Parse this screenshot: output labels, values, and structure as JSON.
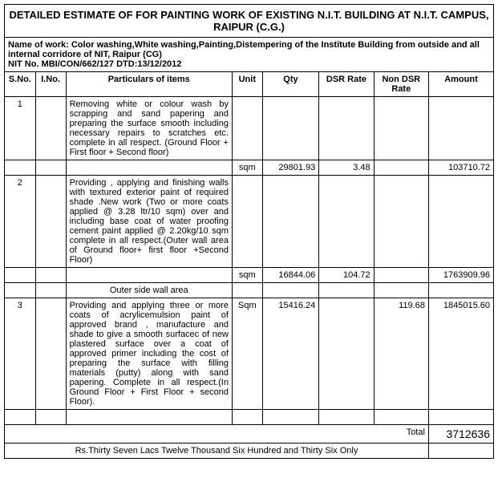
{
  "title": "DETAILED ESTIMATE OF FOR PAINTING   WORK   OF EXISTING N.I.T. BUILDING AT N.I.T. CAMPUS, RAIPUR (C.G.)",
  "work_name": "Name of work: Color washing,White washing,Painting,Distempering of the Institute Building from outside and all internal corridore of NIT, Raipur (CG)",
  "nit_no": "NIT No. MBI/CON/662/127 DTD:13/12/2012",
  "headers": {
    "sno": "S.No.",
    "ino": "I.No.",
    "particulars": "Particulars of items",
    "unit": "Unit",
    "qty": "Qty",
    "dsr": "DSR Rate",
    "ndsr": "Non DSR Rate",
    "amount": "Amount"
  },
  "rows": [
    {
      "sno": "1",
      "ino": "",
      "desc": "Removing white or colour wash by scrapping and sand papering and preparing the surface smooth including necessary repairs to scratches etc. complete in all respect.  (Ground Floor + First floor + Second floor)",
      "unit": "sqm",
      "qty": "29801.93",
      "dsr": "3.48",
      "ndsr": "",
      "amount": "103710.72",
      "sub": ""
    },
    {
      "sno": "2",
      "ino": "",
      "desc": "Providing , applying and finishing walls with textured exterior paint of required shade .New work (Two or more coats applied @ 3.28 ltr/10 sqm) over and including base coat of water proofing cement paint applied @ 2.20kg/10 sqm complete in all respect.(Outer wall area of Ground floor+ first floor +Second Floor)",
      "unit": "sqm",
      "qty": "16844.06",
      "dsr": "104.72",
      "ndsr": "",
      "amount": "1763909.96",
      "sub": "Outer side wall area"
    },
    {
      "sno": "3",
      "ino": "",
      "desc": " Providing and applying three or more coats of acrylicemulsion paint of approved brand , manufacture and shade to give a smooth surfacec of new plastered surface  over a coat of approved primer including the cost of preparing the surface with filling materials (putty) along with sand papering. Complete in all respect.(In Ground Floor + First Floor + second Floor).",
      "unit": "Sqm",
      "qty": "15416.24",
      "dsr": "",
      "ndsr": "119.68",
      "amount": "1845015.60",
      "sub": ""
    }
  ],
  "total_label": "Total",
  "total_amount": "3712636",
  "amount_words": "Rs.Thirty Seven Lacs Twelve Thousand Six Hundred and Thirty Six Only"
}
